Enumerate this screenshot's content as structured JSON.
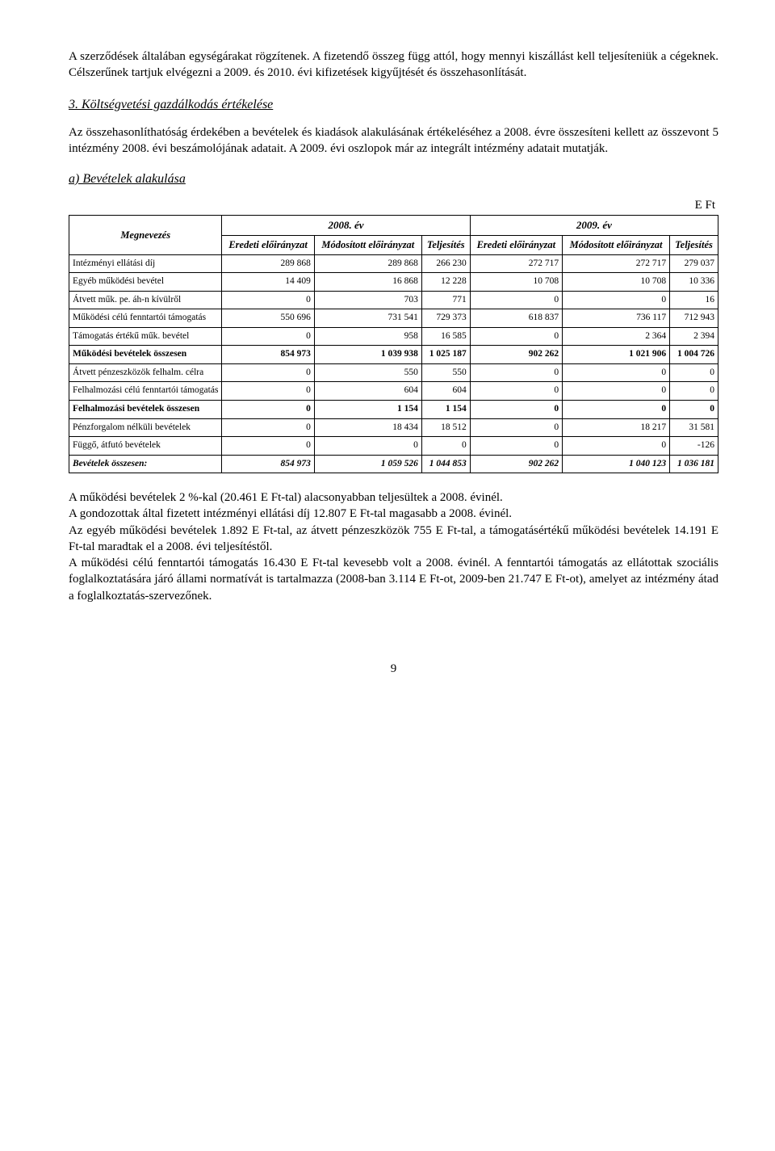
{
  "para1": "A szerződések általában egységárakat rögzítenek. A fizetendő összeg függ attól, hogy mennyi kiszállást kell teljesíteniük a cégeknek. Célszerűnek tartjuk elvégezni a 2009. és 2010. évi kifizetések kigyűjtését és összehasonlítását.",
  "section3_title": "3. Költségvetési gazdálkodás értékelése",
  "para2": "Az összehasonlíthatóság érdekében a bevételek és kiadások alakulásának értékeléséhez a 2008. évre összesíteni kellett az összevont 5 intézmény 2008. évi beszámolójának adatait. A 2009. évi oszlopok már az integrált intézmény adatait mutatják.",
  "subsection_a": "a) Bevételek alakulása",
  "unit": "E Ft",
  "table": {
    "year1": "2008. év",
    "year2": "2009. év",
    "megnevezes": "Megnevezés",
    "col_eredeti": "Eredeti előirányzat",
    "col_modositott": "Módosított előirányzat",
    "col_teljesites": "Teljesítés",
    "rows": [
      {
        "label": "Intézményi ellátási díj",
        "v": [
          "289 868",
          "289 868",
          "266 230",
          "272 717",
          "272 717",
          "279 037"
        ],
        "style": ""
      },
      {
        "label": "Egyéb működési bevétel",
        "v": [
          "14 409",
          "16 868",
          "12 228",
          "10 708",
          "10 708",
          "10 336"
        ],
        "style": ""
      },
      {
        "label": "Átvett műk. pe. áh-n kívülről",
        "v": [
          "0",
          "703",
          "771",
          "0",
          "0",
          "16"
        ],
        "style": ""
      },
      {
        "label": "Működési célú fenntartói támogatás",
        "v": [
          "550 696",
          "731 541",
          "729 373",
          "618 837",
          "736 117",
          "712 943"
        ],
        "style": ""
      },
      {
        "label": "Támogatás értékű műk. bevétel",
        "v": [
          "0",
          "958",
          "16 585",
          "0",
          "2 364",
          "2 394"
        ],
        "style": ""
      },
      {
        "label": "Működési bevételek összesen",
        "v": [
          "854 973",
          "1 039 938",
          "1 025 187",
          "902 262",
          "1 021 906",
          "1 004 726"
        ],
        "style": "bold"
      },
      {
        "label": "Átvett pénzeszközök felhalm. célra",
        "v": [
          "0",
          "550",
          "550",
          "0",
          "0",
          "0"
        ],
        "style": ""
      },
      {
        "label": "Felhalmozási célú fenntartói támogatás",
        "v": [
          "0",
          "604",
          "604",
          "0",
          "0",
          "0"
        ],
        "style": ""
      },
      {
        "label": "Felhalmozási bevételek összesen",
        "v": [
          "0",
          "1 154",
          "1 154",
          "0",
          "0",
          "0"
        ],
        "style": "bold"
      },
      {
        "label": "Pénzforgalom nélküli bevételek",
        "v": [
          "0",
          "18 434",
          "18 512",
          "0",
          "18 217",
          "31 581"
        ],
        "style": ""
      },
      {
        "label": "Függő, átfutó bevételek",
        "v": [
          "0",
          "0",
          "0",
          "0",
          "0",
          "-126"
        ],
        "style": ""
      },
      {
        "label": "Bevételek összesen:",
        "v": [
          "854 973",
          "1 059 526",
          "1 044 853",
          "902 262",
          "1 040 123",
          "1 036 181"
        ],
        "style": "italic-bold"
      }
    ]
  },
  "para3": "A működési bevételek 2 %-kal (20.461 E Ft-tal) alacsonyabban teljesültek a 2008. évinél.",
  "para4": "A gondozottak által fizetett intézményi ellátási díj 12.807 E Ft-tal magasabb a 2008. évinél.",
  "para5": "Az egyéb működési bevételek 1.892 E Ft-tal, az átvett pénzeszközök 755 E Ft-tal, a támogatásértékű működési bevételek 14.191 E Ft-tal maradtak el a 2008. évi teljesítéstől.",
  "para6": "A működési célú fenntartói támogatás 16.430 E Ft-tal kevesebb volt a 2008. évinél. A fenntartói támogatás az ellátottak szociális foglalkoztatására járó állami normatívát is tartalmazza (2008-ban 3.114 E Ft-ot, 2009-ben 21.747 E Ft-ot), amelyet az intézmény átad a foglalkoztatás-szervezőnek.",
  "page_number": "9"
}
